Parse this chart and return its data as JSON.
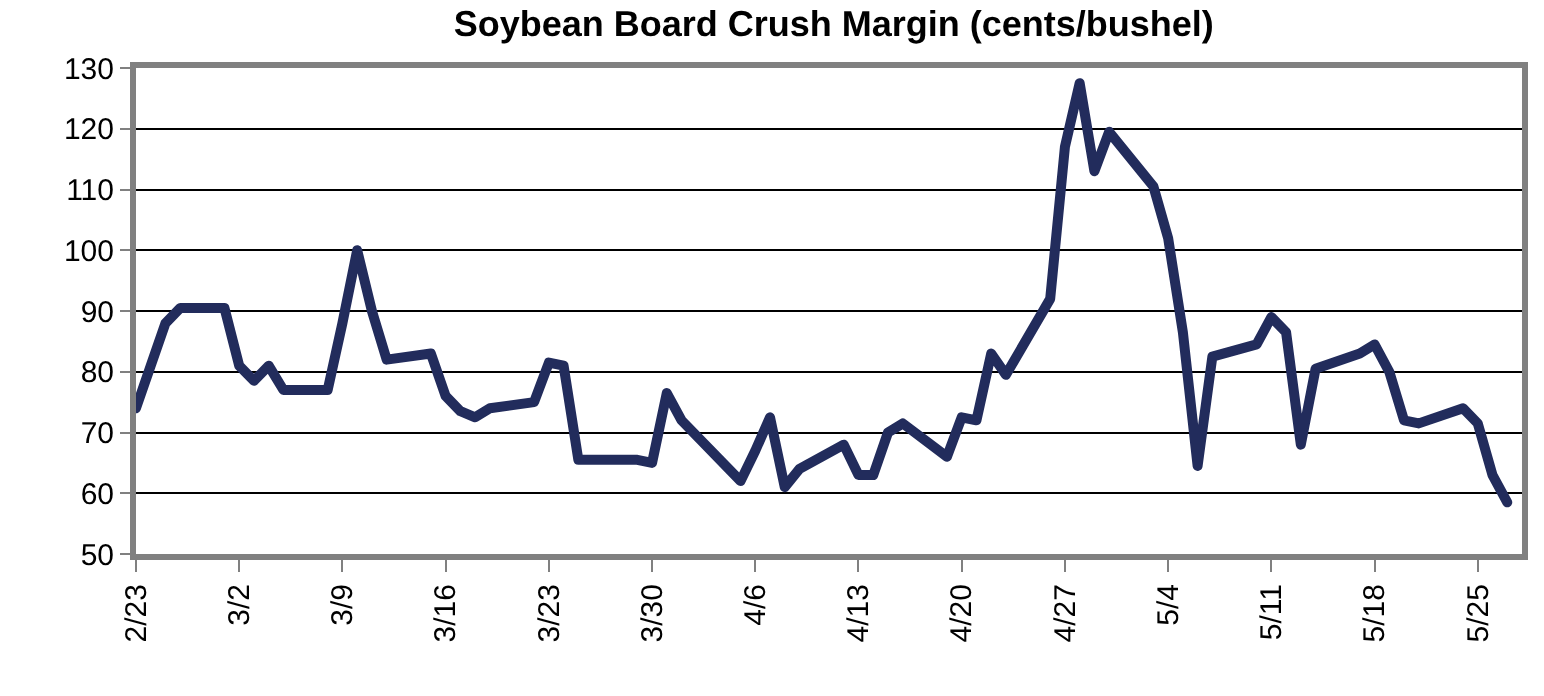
{
  "chart_data": {
    "type": "line",
    "title": "Soybean Board Crush Margin (cents/bushel)",
    "x": [
      "--02-23",
      "--02-24",
      "--02-25",
      "--02-26",
      "--03-01",
      "--03-02",
      "--03-03",
      "--03-04",
      "--03-05",
      "--03-08",
      "--03-09",
      "--03-10",
      "--03-11",
      "--03-12",
      "--03-15",
      "--03-16",
      "--03-17",
      "--03-18",
      "--03-19",
      "--03-22",
      "--03-23",
      "--03-24",
      "--03-25",
      "--03-26",
      "--03-29",
      "--03-30",
      "--03-31",
      "--04-01",
      "--04-05",
      "--04-06",
      "--04-07",
      "--04-08",
      "--04-09",
      "--04-12",
      "--04-13",
      "--04-14",
      "--04-15",
      "--04-16",
      "--04-19",
      "--04-20",
      "--04-21",
      "--04-22",
      "--04-23",
      "--04-26",
      "--04-27",
      "--04-28",
      "--04-29",
      "--04-30",
      "--05-03",
      "--05-04",
      "--05-05",
      "--05-06",
      "--05-07",
      "--05-10",
      "--05-11",
      "--05-12",
      "--05-13",
      "--05-14",
      "--05-17",
      "--05-18",
      "--05-19",
      "--05-20",
      "--05-21",
      "--05-24",
      "--05-25",
      "--05-26",
      "--05-27"
    ],
    "series": [
      {
        "color": "#222c5c",
        "values": [
          74,
          81,
          88,
          90.5,
          90.5,
          81,
          78.5,
          81,
          77,
          77,
          88,
          100,
          90,
          82,
          83,
          76,
          73.5,
          72.5,
          74,
          75,
          81.5,
          81,
          65.5,
          65.5,
          65.5,
          65,
          76.5,
          72,
          62,
          67,
          72.5,
          61,
          64,
          68,
          63,
          63,
          70,
          71.5,
          66,
          72.5,
          72,
          83,
          79.5,
          92,
          117,
          127.5,
          113,
          119.5,
          110.5,
          102,
          86.5,
          64.5,
          82.5,
          84.5,
          89,
          86.5,
          68,
          80.5,
          83,
          84.5,
          80,
          72,
          71.5,
          74,
          71.5,
          63,
          58.5
        ]
      }
    ],
    "xlim": [
      "--02-23",
      "--05-28"
    ],
    "xticks": [
      {
        "value": "--02-23",
        "label": "2/23"
      },
      {
        "value": "--03-02",
        "label": "3/2"
      },
      {
        "value": "--03-09",
        "label": "3/9"
      },
      {
        "value": "--03-16",
        "label": "3/16"
      },
      {
        "value": "--03-23",
        "label": "3/23"
      },
      {
        "value": "--03-30",
        "label": "3/30"
      },
      {
        "value": "--04-06",
        "label": "4/6"
      },
      {
        "value": "--04-13",
        "label": "4/13"
      },
      {
        "value": "--04-20",
        "label": "4/20"
      },
      {
        "value": "--04-27",
        "label": "4/27"
      },
      {
        "value": "--05-04",
        "label": "5/4"
      },
      {
        "value": "--05-11",
        "label": "5/11"
      },
      {
        "value": "--05-18",
        "label": "5/18"
      },
      {
        "value": "--05-25",
        "label": "5/25"
      }
    ],
    "ylim": [
      50,
      130
    ],
    "yticks": [
      50,
      60,
      70,
      80,
      90,
      100,
      110,
      120,
      130
    ],
    "grid": "y",
    "marker": "none",
    "line_style": "solid"
  }
}
